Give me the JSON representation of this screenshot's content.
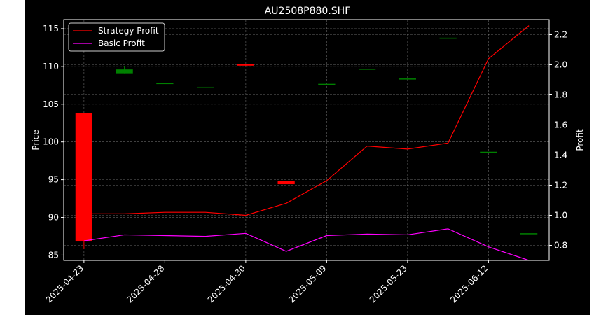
{
  "chart_data": {
    "type": "candlestick+line",
    "title": "AU2508P880.SHF",
    "ylabel_left": "Price",
    "ylabel_right": "Profit",
    "xlabel": "",
    "ylim_left": [
      84.3,
      116.2
    ],
    "ylim_right": [
      0.7,
      2.3
    ],
    "grid": true,
    "legend_placement": "upper-left",
    "x_tick_labels": [
      "2025-04-23",
      "2025-04-28",
      "2025-04-30",
      "2025-05-09",
      "2025-05-23",
      "2025-06-12"
    ],
    "x_tick_indices": [
      0,
      2,
      4,
      6,
      8,
      10
    ],
    "candles": [
      {
        "open": 103.8,
        "high": 103.8,
        "low": 85.8,
        "close": 86.8
      },
      {
        "open": 109.0,
        "high": 110.0,
        "low": 109.0,
        "close": 109.6
      },
      {
        "open": 107.8,
        "high": 107.8,
        "low": 107.8,
        "close": 107.8
      },
      {
        "open": 107.3,
        "high": 107.3,
        "low": 107.3,
        "close": 107.3
      },
      {
        "open": 110.3,
        "high": 110.3,
        "low": 110.1,
        "close": 110.1
      },
      {
        "open": 94.8,
        "high": 94.8,
        "low": 94.4,
        "close": 94.4
      },
      {
        "open": 107.7,
        "high": 107.7,
        "low": 107.7,
        "close": 107.7
      },
      {
        "open": 109.7,
        "high": 109.7,
        "low": 109.7,
        "close": 109.7
      },
      {
        "open": 108.4,
        "high": 108.4,
        "low": 108.4,
        "close": 108.4
      },
      {
        "open": 113.8,
        "high": 113.8,
        "low": 113.8,
        "close": 113.8
      },
      {
        "open": 98.7,
        "high": 98.7,
        "low": 98.7,
        "close": 98.7
      },
      {
        "open": 87.9,
        "high": 87.9,
        "low": 87.9,
        "close": 87.9
      }
    ],
    "series": [
      {
        "name": "Strategy Profit",
        "color": "#ff0000",
        "values": [
          1.01,
          1.01,
          1.02,
          1.02,
          1.0,
          1.08,
          1.23,
          1.46,
          1.44,
          1.48,
          2.04,
          2.26
        ]
      },
      {
        "name": "Basic Profit",
        "color": "#ff00ff",
        "values": [
          0.83,
          0.87,
          0.865,
          0.86,
          0.88,
          0.76,
          0.865,
          0.875,
          0.87,
          0.91,
          0.79,
          0.7
        ]
      }
    ],
    "colors": {
      "up": "#008000",
      "down": "#ff0000",
      "background": "#000000",
      "text": "#ffffff"
    },
    "y_ticks_left": [
      "85",
      "90",
      "95",
      "100",
      "105",
      "110",
      "115"
    ],
    "y_ticks_right": [
      "0.8",
      "1.0",
      "1.2",
      "1.4",
      "1.6",
      "1.8",
      "2.0",
      "2.2"
    ]
  }
}
